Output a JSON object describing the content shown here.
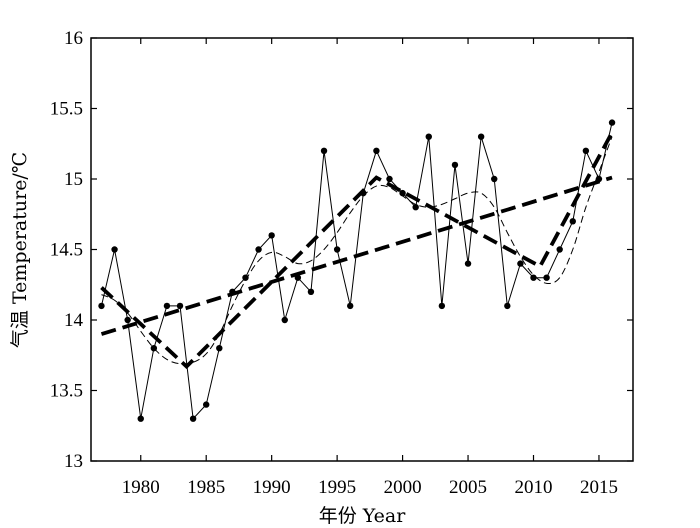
{
  "chart_data": {
    "type": "line",
    "title": "",
    "xlabel": "年份 Year",
    "ylabel": "气温 Temperature/℃",
    "xlim": [
      1976.2,
      2017.6
    ],
    "ylim": [
      13,
      16
    ],
    "xticks": [
      1980,
      1985,
      1990,
      1995,
      2000,
      2005,
      2010,
      2015
    ],
    "yticks": [
      13,
      13.5,
      14,
      14.5,
      15,
      15.5,
      16
    ],
    "ytick_labels": [
      "13",
      "13.5",
      "14",
      "14.5",
      "15",
      "15.5",
      "16"
    ],
    "grid": false,
    "series": [
      {
        "style": "solid-thin-with-markers",
        "x": [
          1977,
          1978,
          1979,
          1980,
          1981,
          1982,
          1983,
          1984,
          1985,
          1986,
          1987,
          1988,
          1989,
          1990,
          1991,
          1992,
          1993,
          1994,
          1995,
          1996,
          1997,
          1998,
          1999,
          2000,
          2001,
          2002,
          2003,
          2004,
          2005,
          2006,
          2007,
          2008,
          2009,
          2010,
          2011,
          2012,
          2013,
          2014,
          2015,
          2016
        ],
        "y": [
          14.1,
          14.5,
          14.0,
          13.3,
          13.8,
          14.1,
          14.1,
          13.3,
          13.4,
          13.8,
          14.2,
          14.3,
          14.5,
          14.6,
          14.0,
          14.3,
          14.2,
          15.2,
          14.5,
          14.1,
          14.9,
          15.2,
          15.0,
          14.9,
          14.8,
          15.3,
          14.1,
          15.1,
          14.4,
          15.3,
          15.0,
          14.1,
          14.4,
          14.3,
          14.3,
          14.5,
          14.7,
          15.2,
          15.0,
          15.4
        ]
      },
      {
        "style": "dashed-thin-smooth",
        "x": [
          1977,
          1978,
          1979,
          1980,
          1981,
          1982,
          1983,
          1984,
          1985,
          1986,
          1987,
          1988,
          1989,
          1990,
          1991,
          1992,
          1993,
          1994,
          1995,
          1996,
          1997,
          1998,
          1999,
          2000,
          2001,
          2002,
          2003,
          2004,
          2005,
          2006,
          2007,
          2008,
          2009,
          2010,
          2011,
          2012,
          2013,
          2014,
          2015,
          2016
        ],
        "y": [
          14.18,
          14.14,
          14.05,
          13.92,
          13.8,
          13.72,
          13.69,
          13.7,
          13.76,
          13.9,
          14.1,
          14.28,
          14.42,
          14.48,
          14.45,
          14.4,
          14.42,
          14.5,
          14.62,
          14.76,
          14.88,
          14.95,
          14.94,
          14.88,
          14.82,
          14.8,
          14.82,
          14.86,
          14.9,
          14.9,
          14.8,
          14.62,
          14.45,
          14.32,
          14.26,
          14.3,
          14.5,
          14.8,
          15.05,
          15.3
        ]
      },
      {
        "style": "dashed-thick-linear-trend",
        "x": [
          1977,
          2016
        ],
        "y": [
          13.9,
          15.01
        ]
      },
      {
        "style": "dashed-thick-piecewise",
        "x": [
          1977,
          1983.5,
          1998,
          2010.5,
          2016
        ],
        "y": [
          14.23,
          13.67,
          15.01,
          14.38,
          15.33
        ]
      }
    ]
  }
}
